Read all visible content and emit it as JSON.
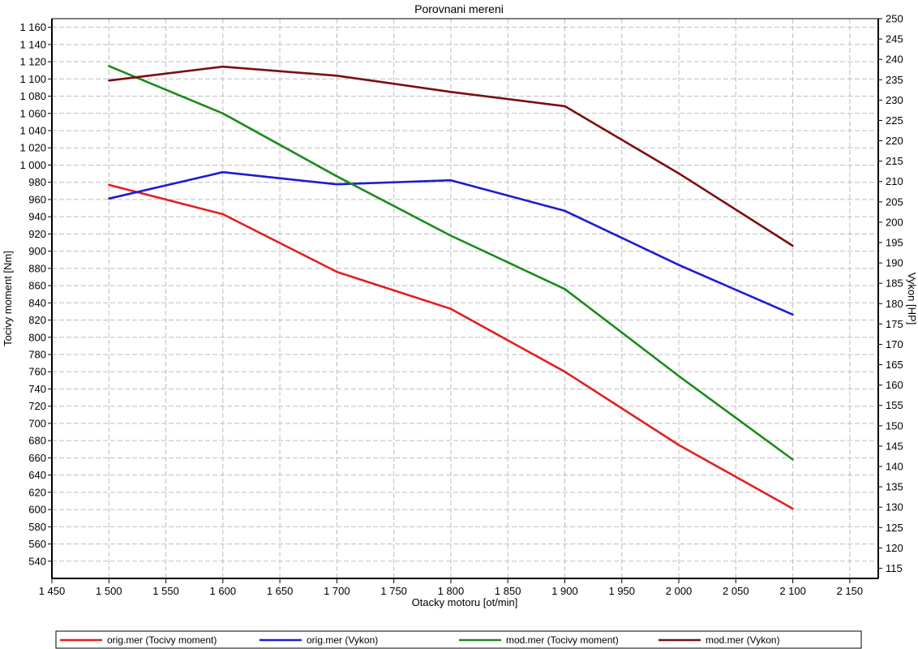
{
  "chart_data": {
    "type": "line",
    "title": "Porovnani mereni",
    "xlabel": "Otacky motoru [ot/min]",
    "ylabel_left": "Tocivy moment [Nm]",
    "ylabel_right": "Vykon [HP]",
    "xlim": [
      1450,
      2175
    ],
    "ylim_left": [
      520,
      1170
    ],
    "ylim_right": [
      112.5,
      250
    ],
    "x_ticks": [
      1450,
      1500,
      1550,
      1600,
      1650,
      1700,
      1750,
      1800,
      1850,
      1900,
      1950,
      2000,
      2050,
      2100,
      2150
    ],
    "x_tick_labels": [
      "1 450",
      "1 500",
      "1 550",
      "1 600",
      "1 650",
      "1 700",
      "1 750",
      "1 800",
      "1 850",
      "1 900",
      "1 950",
      "2 000",
      "2 050",
      "2 100",
      "2 150"
    ],
    "y_left_ticks": [
      540,
      560,
      580,
      600,
      620,
      640,
      660,
      680,
      700,
      720,
      740,
      760,
      780,
      800,
      820,
      840,
      860,
      880,
      900,
      920,
      940,
      960,
      980,
      1000,
      1020,
      1040,
      1060,
      1080,
      1100,
      1120,
      1140,
      1160
    ],
    "y_left_tick_labels": [
      "540",
      "560",
      "580",
      "600",
      "620",
      "640",
      "660",
      "680",
      "700",
      "720",
      "740",
      "760",
      "780",
      "800",
      "820",
      "840",
      "860",
      "880",
      "900",
      "920",
      "940",
      "960",
      "980",
      "1 000",
      "1 020",
      "1 040",
      "1 060",
      "1 080",
      "1 100",
      "1 120",
      "1 140",
      "1 160"
    ],
    "y_right_ticks": [
      115,
      120,
      125,
      130,
      135,
      140,
      145,
      150,
      155,
      160,
      165,
      170,
      175,
      180,
      185,
      190,
      195,
      200,
      205,
      210,
      215,
      220,
      225,
      230,
      235,
      240,
      245,
      250
    ],
    "y_right_tick_labels": [
      "115",
      "120",
      "125",
      "130",
      "135",
      "140",
      "145",
      "150",
      "155",
      "160",
      "165",
      "170",
      "175",
      "180",
      "185",
      "190",
      "195",
      "200",
      "205",
      "210",
      "215",
      "220",
      "225",
      "230",
      "235",
      "240",
      "245",
      "250"
    ],
    "grid": true,
    "legend_position": "bottom",
    "x": [
      1500,
      1600,
      1700,
      1800,
      1900,
      2000,
      2100
    ],
    "series": [
      {
        "name": "orig.mer  (Tocivy moment)",
        "axis": "left",
        "color": "#e02020",
        "values": [
          977,
          943,
          876,
          833,
          760,
          675,
          601
        ]
      },
      {
        "name": "orig.mer  (Vykon)",
        "axis": "right",
        "color": "#1c1cd0",
        "values": [
          205.8,
          212.3,
          209.3,
          210.3,
          202.8,
          189.5,
          177.3
        ]
      },
      {
        "name": "mod.mer  (Tocivy moment)",
        "axis": "left",
        "color": "#1b8a1b",
        "values": [
          1115,
          1060,
          987,
          918,
          856,
          755,
          658
        ]
      },
      {
        "name": "mod.mer  (Vykon)",
        "axis": "right",
        "color": "#7a0f0f",
        "values": [
          234.8,
          238.2,
          236.0,
          232.0,
          228.5,
          212.0,
          194.2
        ]
      }
    ]
  }
}
